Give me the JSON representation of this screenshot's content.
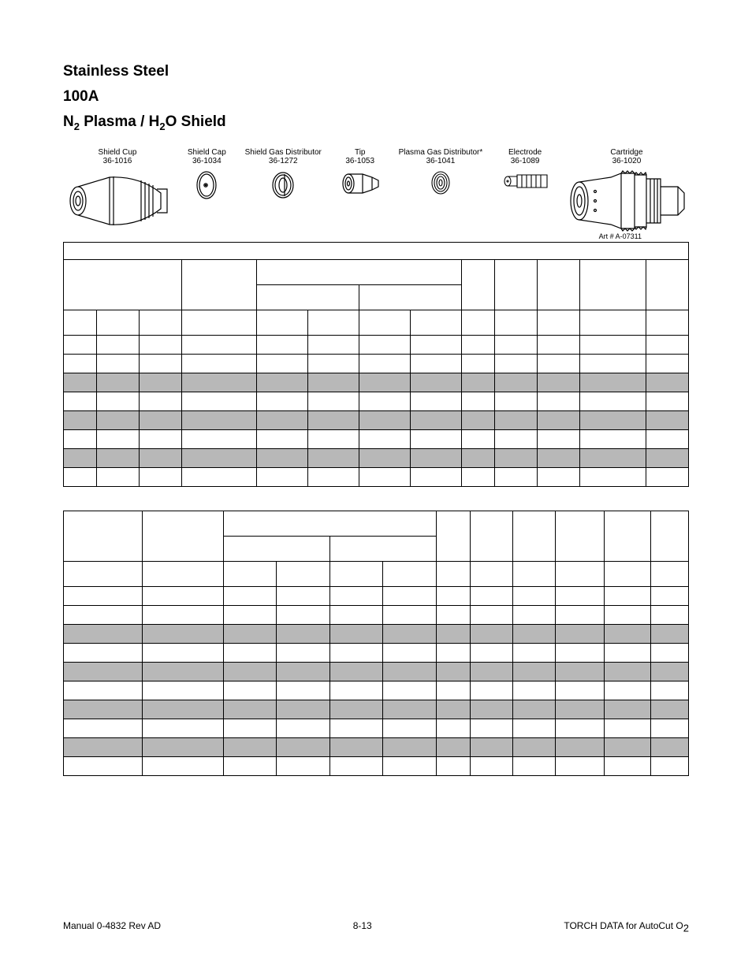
{
  "heading": {
    "line1": "Stainless Steel",
    "line2": "100A",
    "line3_prefix": "N",
    "line3_sub1": "2",
    "line3_mid": "  Plasma / H",
    "line3_sub2": "2",
    "line3_suffix": "O  Shield"
  },
  "parts": [
    {
      "label": "Shield Cup",
      "pn": "36-1016"
    },
    {
      "label": "Shield Cap",
      "pn": "36-1034"
    },
    {
      "label": "Shield Gas Distributor",
      "pn": "36-1272"
    },
    {
      "label": "Tip",
      "pn": "36-1053"
    },
    {
      "label": "Plasma Gas Distributor*",
      "pn": "36-1041"
    },
    {
      "label": "Electrode",
      "pn": "36-1089"
    },
    {
      "label": "Cartridge",
      "pn": "36-1020"
    }
  ],
  "art_label": "Art # A-07311",
  "table1": {
    "col_widths_pct": [
      5.3,
      6.8,
      6.8,
      12.0,
      8.2,
      8.2,
      8.2,
      8.2,
      5.3,
      6.8,
      6.8,
      10.6,
      6.8
    ],
    "header_pattern": "complex",
    "rows": [
      {
        "shade": false
      },
      {
        "shade": false
      },
      {
        "shade": true
      },
      {
        "shade": false
      },
      {
        "shade": true
      },
      {
        "shade": false
      },
      {
        "shade": true
      },
      {
        "shade": false
      }
    ]
  },
  "table2": {
    "col_widths_pct": [
      12.6,
      13.0,
      8.5,
      8.5,
      8.5,
      8.5,
      5.5,
      6.8,
      6.8,
      7.8,
      7.4,
      6.1
    ],
    "rows": [
      {
        "shade": false
      },
      {
        "shade": false
      },
      {
        "shade": true
      },
      {
        "shade": false
      },
      {
        "shade": true
      },
      {
        "shade": false
      },
      {
        "shade": true
      },
      {
        "shade": false
      },
      {
        "shade": true
      },
      {
        "shade": false
      }
    ]
  },
  "footer": {
    "left": "Manual  0-4832 Rev AD",
    "center": "8-13",
    "right_prefix": "TORCH DATA for AutoCut O",
    "right_sub": "2"
  },
  "colors": {
    "shade": "#b8b8b8",
    "border": "#000000",
    "bg": "#ffffff",
    "text": "#000000"
  }
}
